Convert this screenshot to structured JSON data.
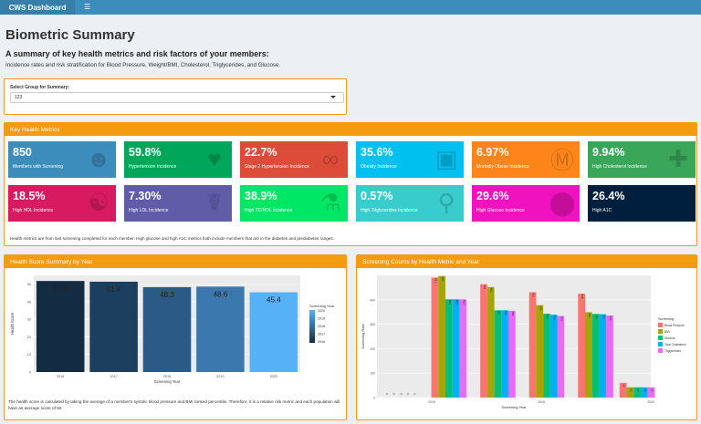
{
  "header": {
    "brand": "CWS Dashboard",
    "menu_icon": "hamburger-icon"
  },
  "page": {
    "title": "Biometric Summary",
    "subtitle": "A summary of key health metrics and risk factors of your members:",
    "description": "Incidence rates and risk stratification for Blood Pressure, Weight/BMI, Cholesterol, Triglycerides, and Glucose."
  },
  "group_select": {
    "label": "Select Group for Summary:",
    "value": "123"
  },
  "metrics": {
    "title": "Key Health Metrics",
    "note": "Health metrics are from last screening completed for each member. High glucose and high A1C metrics both include members that are in the diabetes and prediabetes ranges.",
    "tiles": [
      {
        "value": "850",
        "label": "Members with Screening",
        "color": "#3c8dbc",
        "icon": "user-md-icon"
      },
      {
        "value": "59.8%",
        "label": "Hypertension Incidence",
        "color": "#00a65a",
        "icon": "heart-icon"
      },
      {
        "value": "22.7%",
        "label": "Stage 2 Hypertension Incidence",
        "color": "#dd4b39",
        "icon": "stethoscope-icon"
      },
      {
        "value": "35.6%",
        "label": "Obesity Incidence",
        "color": "#00c0ef",
        "icon": "scale-icon"
      },
      {
        "value": "6.97%",
        "label": "Morbidly Obese Incidence",
        "color": "#ff851b",
        "icon": "hospital-icon"
      },
      {
        "value": "9.94%",
        "label": "High Cholesterol Incidence",
        "color": "#39a65a",
        "icon": "first-aid-icon"
      },
      {
        "value": "18.5%",
        "label": "High HDL Incidence",
        "color": "#d81b60",
        "icon": "utensils-icon"
      },
      {
        "value": "7.30%",
        "label": "High LDL Incidence",
        "color": "#605ca8",
        "icon": "prescription-icon"
      },
      {
        "value": "38.9%",
        "label": "High TC/HDL Incidence",
        "color": "#00e765",
        "icon": "vials-icon"
      },
      {
        "value": "0.57%",
        "label": "High Triglycerides Incidence",
        "color": "#39cccc",
        "icon": "microscope-icon"
      },
      {
        "value": "29.6%",
        "label": "High Glucose Incidence",
        "color": "#f012be",
        "icon": "pill-icon"
      },
      {
        "value": "26.4%",
        "label": "High A1C",
        "color": "#001f3f",
        "icon": "blank-icon"
      }
    ]
  },
  "chart_health": {
    "title": "Health Score Summary by Year",
    "note": "The health score is calculated by taking the average of a member's systolic blood pressure and BMI ranked percentile. Therefore, it is a relative risk metric and each population will have an average score of 50.",
    "chart_data": {
      "type": "bar",
      "categories": [
        "2016",
        "2017",
        "2018",
        "2019",
        "2020"
      ],
      "values": [
        51.8,
        51.4,
        48.3,
        48.6,
        45.4
      ],
      "value_labels": [
        "51.8",
        "51.4",
        "48.3",
        "48.6",
        "45.4"
      ],
      "xlabel": "Screening Year",
      "ylabel": "Health Score",
      "ylim": [
        0,
        55
      ],
      "yticks": [
        "0",
        "10",
        "20",
        "30",
        "40",
        "50"
      ],
      "colors": [
        "#132b43",
        "#1d3f5f",
        "#2a5a85",
        "#3a78ad",
        "#56b1f7"
      ],
      "legend": {
        "title": "Screening Year",
        "labels": [
          "2020",
          "2019",
          "2018",
          "2017",
          "2016"
        ],
        "position": "right"
      }
    }
  },
  "chart_screen": {
    "title": "Screening Counts by Health Metric and Year",
    "chart_data": {
      "type": "bar",
      "categories": [
        "2016",
        "2017",
        "2018",
        "2019",
        "2020"
      ],
      "tick_labels": [
        "",
        "2016",
        "",
        "2018",
        "",
        "2020"
      ],
      "xlabel": "Screening Year",
      "ylabel": "Screening Rate",
      "ylim": [
        0,
        500
      ],
      "yticks": [
        "0",
        "100",
        "200",
        "300",
        "400"
      ],
      "series": [
        {
          "name": "Blood Pressure",
          "color": "#f8766d",
          "values": [
            0,
            491,
            464,
            431,
            425
          ],
          "labels": [
            "0",
            "491",
            "464",
            "431",
            "425"
          ]
        },
        {
          "name": "BMI",
          "color": "#a3a500",
          "values": [
            0,
            497,
            452,
            378,
            349
          ],
          "labels": [
            "0",
            "497",
            "452",
            "378",
            "349"
          ]
        },
        {
          "name": "Glucose",
          "color": "#00bf7d",
          "values": [
            0,
            402,
            357,
            343,
            342
          ],
          "labels": [
            "0",
            "402",
            "357",
            "343",
            "342"
          ]
        },
        {
          "name": "Total Cholesterol",
          "color": "#00b0f6",
          "values": [
            0,
            402,
            357,
            339,
            341
          ],
          "labels": [
            "0",
            "402",
            "357",
            "339",
            "341"
          ]
        },
        {
          "name": "Triglycerides",
          "color": "#e76bf3",
          "values": [
            0,
            402,
            355,
            334,
            336
          ],
          "labels": [
            "0",
            "402",
            "355",
            "334",
            "336"
          ]
        }
      ],
      "trailing": {
        "values": [
          60,
          42,
          42,
          42,
          42
        ],
        "labels": [
          "60",
          "42",
          "42",
          "42",
          "42"
        ]
      },
      "legend": {
        "title": "Screening",
        "position": "right"
      }
    }
  }
}
